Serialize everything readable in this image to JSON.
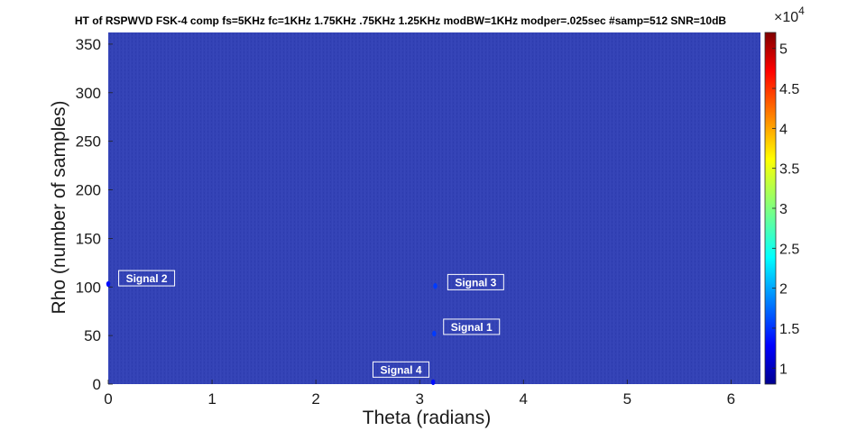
{
  "chart_data": {
    "type": "heatmap",
    "title": "HT of RSPWVD FSK-4 comp fs=5KHz fc=1KHz 1.75KHz .75KHz 1.25KHz modBW=1KHz modper=.025sec #samp=512 SNR=10dB",
    "xlabel": "Theta (radians)",
    "ylabel": "Rho (number of samples)",
    "xlim": [
      0,
      6.2832
    ],
    "ylim": [
      0,
      362
    ],
    "x_ticks": [
      0,
      1,
      2,
      3,
      4,
      5,
      6
    ],
    "x_tick_labels": [
      "0",
      "1",
      "2",
      "3",
      "4",
      "5",
      "6"
    ],
    "y_ticks": [
      0,
      50,
      100,
      150,
      200,
      250,
      300,
      350
    ],
    "y_tick_labels": [
      "0",
      "50",
      "100",
      "150",
      "200",
      "250",
      "300",
      "350"
    ],
    "background_value": 9000,
    "colorbar": {
      "colormap": "jet",
      "range": [
        8000,
        52000
      ],
      "ticks": [
        10000,
        15000,
        20000,
        25000,
        30000,
        35000,
        40000,
        45000,
        50000
      ],
      "tick_labels": [
        "1",
        "1.5",
        "2",
        "2.5",
        "3",
        "3.5",
        "4",
        "4.5",
        "5"
      ],
      "exponent_label": "×10",
      "exponent_power": "4"
    },
    "peaks": [
      {
        "x": 3.14,
        "y": 52,
        "value": 16000
      },
      {
        "x": 0.0,
        "y": 103,
        "value": 14000
      },
      {
        "x": 3.15,
        "y": 101,
        "value": 16000
      },
      {
        "x": 3.13,
        "y": 2,
        "value": 14000
      }
    ],
    "annotations": [
      {
        "text": "Signal 1",
        "x": 3.5,
        "y": 59
      },
      {
        "text": "Signal 2",
        "x": 0.37,
        "y": 109
      },
      {
        "text": "Signal 3",
        "x": 3.54,
        "y": 105
      },
      {
        "text": "Signal 4",
        "x": 2.82,
        "y": 15
      }
    ]
  }
}
